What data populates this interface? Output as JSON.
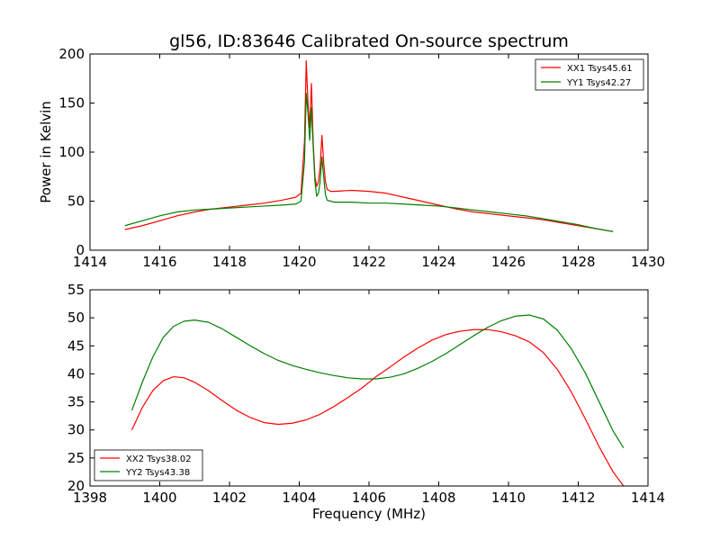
{
  "chart_data": [
    {
      "type": "line",
      "title": "gl56, ID:83646 Calibrated On-source spectrum",
      "xlabel": "",
      "ylabel": "Power in Kelvin",
      "xlim": [
        1414,
        1430
      ],
      "ylim": [
        0,
        200
      ],
      "xticks": [
        1414,
        1416,
        1418,
        1420,
        1422,
        1424,
        1426,
        1428,
        1430
      ],
      "yticks": [
        0,
        50,
        100,
        150,
        200
      ],
      "legend": "top-right",
      "series": [
        {
          "name": "XX1 Tsys45.61",
          "color": "#ff0000",
          "x": [
            1415.0,
            1415.5,
            1416.0,
            1416.5,
            1417.0,
            1417.5,
            1418.0,
            1418.5,
            1419.0,
            1419.5,
            1419.9,
            1420.05,
            1420.15,
            1420.2,
            1420.25,
            1420.3,
            1420.35,
            1420.4,
            1420.45,
            1420.5,
            1420.55,
            1420.6,
            1420.65,
            1420.7,
            1420.75,
            1420.8,
            1420.9,
            1421.0,
            1421.5,
            1422.0,
            1422.5,
            1423.0,
            1423.5,
            1424.0,
            1424.5,
            1425.0,
            1425.5,
            1426.0,
            1426.5,
            1427.0,
            1427.5,
            1428.0,
            1428.5,
            1429.0
          ],
          "y": [
            21,
            25,
            30,
            35,
            39,
            42,
            44,
            46,
            48,
            51,
            54,
            58,
            110,
            193,
            150,
            125,
            170,
            110,
            75,
            65,
            70,
            85,
            117,
            90,
            70,
            62,
            60,
            60,
            61,
            60,
            58,
            54,
            50,
            46,
            42,
            39,
            37,
            35,
            33,
            31,
            28,
            25,
            22,
            19
          ]
        },
        {
          "name": "YY1 Tsys42.27",
          "color": "#008000",
          "x": [
            1415.0,
            1415.5,
            1416.0,
            1416.5,
            1417.0,
            1417.5,
            1418.0,
            1418.5,
            1419.0,
            1419.5,
            1419.9,
            1420.05,
            1420.15,
            1420.2,
            1420.25,
            1420.3,
            1420.35,
            1420.4,
            1420.45,
            1420.5,
            1420.55,
            1420.6,
            1420.65,
            1420.7,
            1420.75,
            1420.8,
            1420.9,
            1421.0,
            1421.5,
            1422.0,
            1422.5,
            1423.0,
            1423.5,
            1424.0,
            1424.5,
            1425.0,
            1425.5,
            1426.0,
            1426.5,
            1427.0,
            1427.5,
            1428.0,
            1428.5,
            1429.0
          ],
          "y": [
            25,
            30,
            35,
            39,
            41,
            42,
            43,
            44,
            45,
            46,
            47,
            50,
            90,
            160,
            140,
            112,
            145,
            105,
            70,
            55,
            58,
            70,
            95,
            75,
            57,
            51,
            50,
            49,
            49,
            48,
            48,
            47,
            46,
            45,
            43,
            41,
            39,
            37,
            35,
            32,
            29,
            26,
            22,
            19
          ]
        }
      ]
    },
    {
      "type": "line",
      "title": "",
      "xlabel": "Frequency (MHz)",
      "ylabel": "",
      "xlim": [
        1398,
        1414
      ],
      "ylim": [
        20,
        55
      ],
      "xticks": [
        1398,
        1400,
        1402,
        1404,
        1406,
        1408,
        1410,
        1412,
        1414
      ],
      "yticks": [
        20,
        25,
        30,
        35,
        40,
        45,
        50,
        55
      ],
      "legend": "bottom-left",
      "series": [
        {
          "name": "XX2 Tsys38.02",
          "color": "#ff0000",
          "x": [
            1399.2,
            1399.5,
            1399.8,
            1400.1,
            1400.4,
            1400.7,
            1401.0,
            1401.4,
            1401.8,
            1402.2,
            1402.6,
            1403.0,
            1403.4,
            1403.8,
            1404.2,
            1404.6,
            1405.0,
            1405.4,
            1405.8,
            1406.2,
            1406.6,
            1407.0,
            1407.4,
            1407.8,
            1408.2,
            1408.6,
            1409.0,
            1409.4,
            1409.8,
            1410.2,
            1410.6,
            1411.0,
            1411.4,
            1411.8,
            1412.2,
            1412.6,
            1413.0,
            1413.3
          ],
          "y": [
            30,
            34,
            37,
            38.8,
            39.5,
            39.3,
            38.5,
            37,
            35.2,
            33.5,
            32.2,
            31.3,
            31,
            31.2,
            31.8,
            32.8,
            34.2,
            35.8,
            37.5,
            39.5,
            41.2,
            43,
            44.6,
            46,
            47,
            47.6,
            47.9,
            47.9,
            47.5,
            46.8,
            45.7,
            43.8,
            40.8,
            36.8,
            32,
            27,
            22.5,
            20
          ]
        },
        {
          "name": "YY2 Tsys43.38",
          "color": "#008000",
          "x": [
            1399.2,
            1399.5,
            1399.8,
            1400.1,
            1400.4,
            1400.7,
            1401.0,
            1401.4,
            1401.8,
            1402.2,
            1402.6,
            1403.0,
            1403.4,
            1403.8,
            1404.2,
            1404.6,
            1405.0,
            1405.4,
            1405.8,
            1406.2,
            1406.6,
            1407.0,
            1407.4,
            1407.8,
            1408.2,
            1408.6,
            1409.0,
            1409.4,
            1409.8,
            1410.2,
            1410.6,
            1411.0,
            1411.4,
            1411.8,
            1412.2,
            1412.6,
            1413.0,
            1413.3
          ],
          "y": [
            33.5,
            38.5,
            43,
            46.5,
            48.5,
            49.4,
            49.6,
            49.2,
            48,
            46.5,
            45,
            43.6,
            42.4,
            41.5,
            40.8,
            40.2,
            39.7,
            39.3,
            39.1,
            39.1,
            39.4,
            40,
            41,
            42.2,
            43.6,
            45.2,
            46.8,
            48.3,
            49.5,
            50.3,
            50.5,
            49.8,
            47.8,
            44.5,
            40.2,
            35,
            29.8,
            26.8
          ]
        }
      ]
    }
  ]
}
